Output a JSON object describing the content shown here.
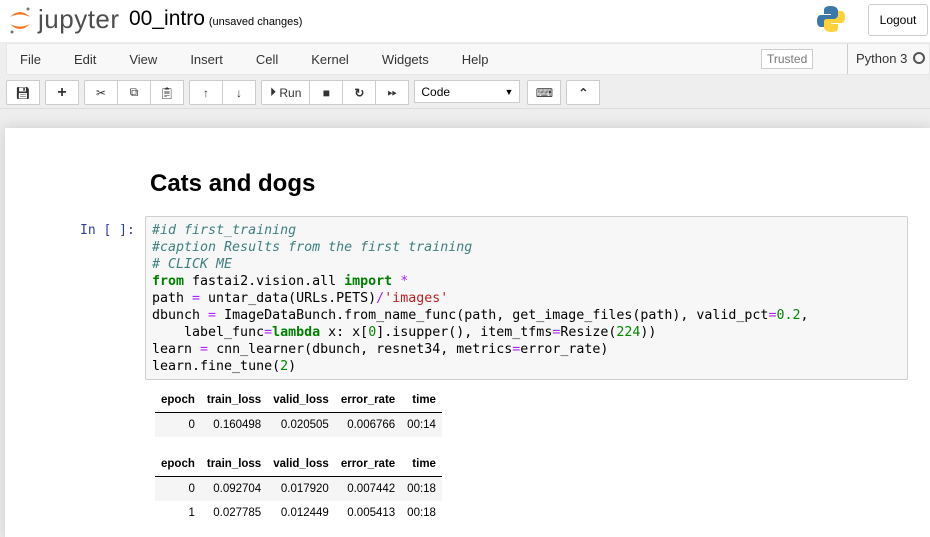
{
  "header": {
    "logo_text": "jupyter",
    "notebook_name": "00_intro",
    "save_status": "(unsaved changes)",
    "logout_label": "Logout"
  },
  "menu": [
    "File",
    "Edit",
    "View",
    "Insert",
    "Cell",
    "Kernel",
    "Widgets",
    "Help"
  ],
  "trusted": "Trusted",
  "kernel_name": "Python 3",
  "toolbar": {
    "run_label": "Run",
    "cell_type": "Code"
  },
  "notebook": {
    "heading": "Cats and dogs",
    "prompt": "In [ ]:",
    "code_lines": [
      [
        [
          "#id first_training",
          "cm"
        ]
      ],
      [
        [
          "#caption Results from the first training",
          "cm"
        ]
      ],
      [
        [
          "# CLICK ME",
          "cm"
        ]
      ],
      [
        [
          "from",
          "kw"
        ],
        [
          " fastai2.vision.all ",
          ""
        ],
        [
          "import",
          "kw"
        ],
        [
          " ",
          ""
        ],
        [
          "*",
          "op"
        ]
      ],
      [
        [
          "path ",
          ""
        ],
        [
          "=",
          "op"
        ],
        [
          " untar_data(URLs.PETS)",
          ""
        ],
        [
          "/",
          "op"
        ],
        [
          "'images'",
          "st"
        ]
      ],
      [
        [
          "dbunch ",
          ""
        ],
        [
          "=",
          "op"
        ],
        [
          " ImageDataBunch.from_name_func(path, get_image_files(path), valid_pct",
          ""
        ],
        [
          "=",
          "op"
        ],
        [
          "0.2",
          "nm"
        ],
        [
          ",",
          ""
        ]
      ],
      [
        [
          "    label_func",
          ""
        ],
        [
          "=",
          "op"
        ],
        [
          "lambda",
          "kw"
        ],
        [
          " x: x[",
          ""
        ],
        [
          "0",
          "nm"
        ],
        [
          "].isupper(), item_tfms",
          ""
        ],
        [
          "=",
          "op"
        ],
        [
          "Resize(",
          ""
        ],
        [
          "224",
          "nm"
        ],
        [
          "))",
          ""
        ]
      ],
      [
        [
          "learn ",
          ""
        ],
        [
          "=",
          "op"
        ],
        [
          " cnn_learner(dbunch, resnet34, metrics",
          ""
        ],
        [
          "=",
          "op"
        ],
        [
          "error_rate)",
          ""
        ]
      ],
      [
        [
          "learn.fine_tune(",
          ""
        ],
        [
          "2",
          "nm"
        ],
        [
          ")",
          ""
        ]
      ]
    ],
    "tables": [
      {
        "columns": [
          "epoch",
          "train_loss",
          "valid_loss",
          "error_rate",
          "time"
        ],
        "rows": [
          [
            "0",
            "0.160498",
            "0.020505",
            "0.006766",
            "00:14"
          ]
        ]
      },
      {
        "columns": [
          "epoch",
          "train_loss",
          "valid_loss",
          "error_rate",
          "time"
        ],
        "rows": [
          [
            "0",
            "0.092704",
            "0.017920",
            "0.007442",
            "00:18"
          ],
          [
            "1",
            "0.027785",
            "0.012449",
            "0.005413",
            "00:18"
          ]
        ]
      }
    ]
  }
}
